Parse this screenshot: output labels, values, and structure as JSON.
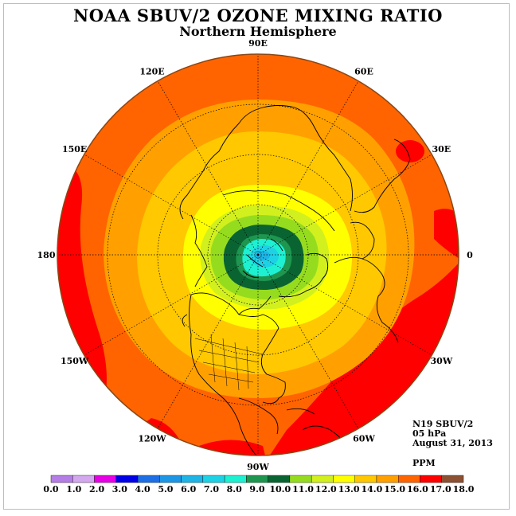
{
  "header": {
    "title": "NOAA SBUV/2 OZONE MIXING RATIO",
    "subtitle": "Northern Hemisphere"
  },
  "info": {
    "satellite": "N19 SBUV/2",
    "pressure": "05 hPa",
    "date": "August 31, 2013",
    "units": "PPM"
  },
  "map": {
    "longitude_labels": [
      "90E",
      "60E",
      "30E",
      "0",
      "30W",
      "60W",
      "90W",
      "120W",
      "150W",
      "180",
      "150E",
      "120E"
    ]
  },
  "colorbar": {
    "tick_labels": [
      "0.0",
      "1.0",
      "2.0",
      "3.0",
      "4.0",
      "5.0",
      "6.0",
      "7.0",
      "8.0",
      "9.0",
      "10.0",
      "11.0",
      "12.0",
      "13.0",
      "14.0",
      "15.0",
      "16.0",
      "17.0",
      "18.0"
    ],
    "colors": [
      "#b57de6",
      "#d4a8ee",
      "#e600e6",
      "#0000e6",
      "#1e6ee6",
      "#1e96e6",
      "#1eb4e6",
      "#1ed2e6",
      "#1ef0d2",
      "#1e9650",
      "#0a6432",
      "#96dc1e",
      "#d2f01e",
      "#ffff00",
      "#ffc800",
      "#ffa000",
      "#ff6400",
      "#ff0000",
      "#8c5032"
    ]
  },
  "colors": {
    "land_outline": "#000000",
    "map_border": "#8b4513",
    "frame": "#d9a8e6"
  }
}
